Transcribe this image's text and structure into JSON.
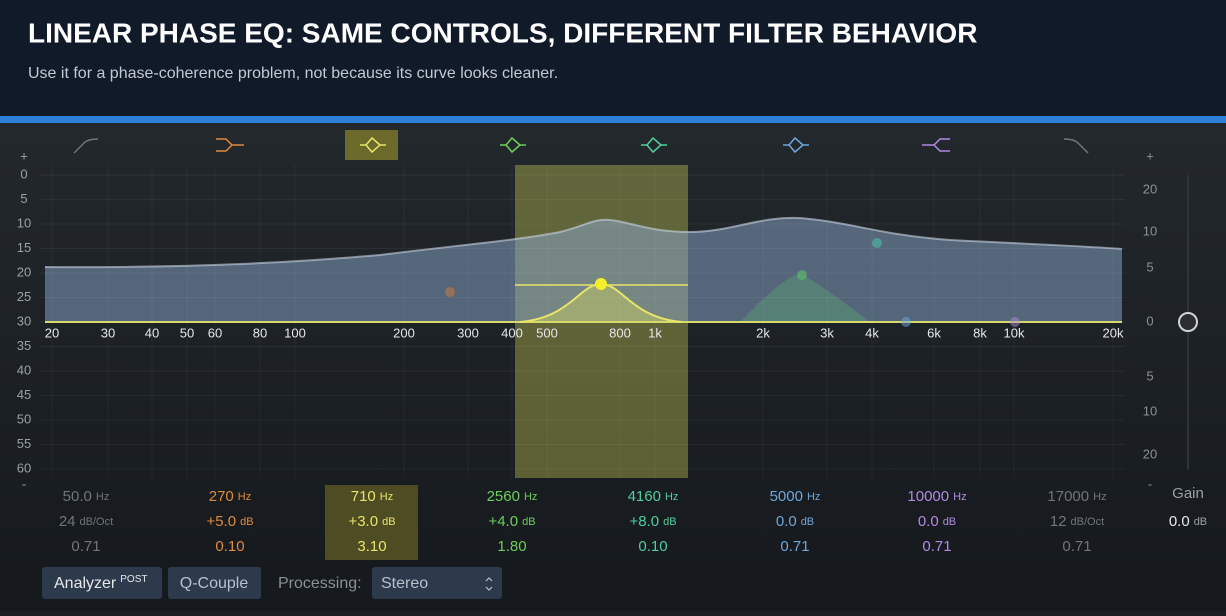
{
  "header": {
    "title": "LINEAR PHASE EQ: SAME CONTROLS, DIFFERENT FILTER BEHAVIOR",
    "subtitle": "Use it for a phase-coherence problem, not because its curve looks cleaner."
  },
  "scale_left": [
    "+",
    "0",
    "5",
    "10",
    "15",
    "20",
    "25",
    "30",
    "35",
    "40",
    "45",
    "50",
    "55",
    "60",
    "-"
  ],
  "scale_right": [
    "+",
    "20",
    "10",
    "5",
    "0",
    "5",
    "10",
    "20",
    "-"
  ],
  "frequency_labels": [
    "20",
    "30",
    "40",
    "50",
    "60",
    "80",
    "100",
    "200",
    "300",
    "400",
    "500",
    "800",
    "1k",
    "2k",
    "3k",
    "4k",
    "6k",
    "8k",
    "10k",
    "20k"
  ],
  "bands": [
    {
      "frequency": "50.0",
      "frequency_unit": "Hz",
      "gain": "24",
      "gain_unit": "dB/Oct",
      "q": "0.71"
    },
    {
      "frequency": "270",
      "frequency_unit": "Hz",
      "gain": "+5.0",
      "gain_unit": "dB",
      "q": "0.10"
    },
    {
      "frequency": "710",
      "frequency_unit": "Hz",
      "gain": "+3.0",
      "gain_unit": "dB",
      "q": "3.10"
    },
    {
      "frequency": "2560",
      "frequency_unit": "Hz",
      "gain": "+4.0",
      "gain_unit": "dB",
      "q": "1.80"
    },
    {
      "frequency": "4160",
      "frequency_unit": "Hz",
      "gain": "+8.0",
      "gain_unit": "dB",
      "q": "0.10"
    },
    {
      "frequency": "5000",
      "frequency_unit": "Hz",
      "gain": "0.0",
      "gain_unit": "dB",
      "q": "0.71"
    },
    {
      "frequency": "10000",
      "frequency_unit": "Hz",
      "gain": "0.0",
      "gain_unit": "dB",
      "q": "0.71"
    },
    {
      "frequency": "17000",
      "frequency_unit": "Hz",
      "gain": "12",
      "gain_unit": "dB/Oct",
      "q": "0.71"
    }
  ],
  "gain": {
    "label": "Gain",
    "value": "0.0",
    "unit": "dB"
  },
  "toolbar": {
    "analyzer": "Analyzer",
    "analyzer_badge": "POST",
    "q_couple": "Q-Couple",
    "processing_label": "Processing:",
    "processing_value": "Stereo"
  }
}
